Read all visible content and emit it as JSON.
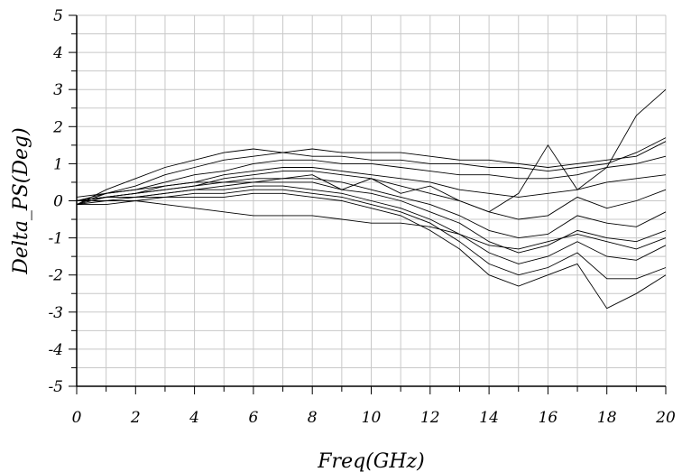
{
  "chart_data": {
    "type": "line",
    "title": "",
    "xlabel": "Freq(GHz)",
    "ylabel": "Delta_PS(Deg)",
    "xlim": [
      0,
      20
    ],
    "ylim": [
      -5,
      5
    ],
    "x_ticks": [
      0,
      2,
      4,
      6,
      8,
      10,
      12,
      14,
      16,
      18,
      20
    ],
    "y_ticks": [
      -5,
      -4,
      -3,
      -2,
      -1,
      0,
      1,
      2,
      3,
      4,
      5
    ],
    "x_tick_labels": [
      "0",
      "2",
      "4",
      "6",
      "8",
      "10",
      "12",
      "14",
      "16",
      "18",
      "20"
    ],
    "y_tick_labels": [
      "-5",
      "-4",
      "-3",
      "-2",
      "-1",
      "0",
      "1",
      "2",
      "3",
      "4",
      "5"
    ],
    "grid": true,
    "legend": "none",
    "x": [
      0,
      1,
      2,
      3,
      4,
      5,
      6,
      7,
      8,
      9,
      10,
      11,
      12,
      13,
      14,
      15,
      16,
      17,
      18,
      19,
      20
    ],
    "series": [
      {
        "values": [
          -0.1,
          0.2,
          0.4,
          0.7,
          0.9,
          1.1,
          1.2,
          1.3,
          1.4,
          1.3,
          1.3,
          1.3,
          1.2,
          1.1,
          1.1,
          1.0,
          0.9,
          1.0,
          1.1,
          1.2,
          1.6
        ]
      },
      {
        "values": [
          -0.1,
          0.3,
          0.6,
          0.9,
          1.1,
          1.3,
          1.4,
          1.3,
          1.2,
          1.2,
          1.1,
          1.1,
          1.0,
          1.0,
          0.9,
          0.9,
          0.8,
          0.9,
          1.0,
          1.3,
          1.7
        ]
      },
      {
        "values": [
          0.0,
          0.2,
          0.3,
          0.5,
          0.7,
          0.8,
          1.0,
          1.1,
          1.1,
          1.0,
          1.0,
          0.9,
          0.8,
          0.7,
          0.7,
          0.6,
          0.6,
          0.7,
          0.9,
          1.0,
          1.2
        ]
      },
      {
        "values": [
          0.0,
          0.1,
          0.2,
          0.4,
          0.5,
          0.7,
          0.8,
          0.9,
          0.9,
          0.8,
          0.7,
          0.6,
          0.5,
          0.3,
          0.2,
          0.1,
          0.2,
          0.3,
          0.5,
          0.6,
          0.7
        ]
      },
      {
        "values": [
          -0.1,
          0.1,
          0.2,
          0.3,
          0.4,
          0.6,
          0.7,
          0.8,
          0.8,
          0.7,
          0.6,
          0.4,
          0.2,
          0.0,
          -0.3,
          -0.5,
          -0.4,
          0.1,
          -0.2,
          0.0,
          0.3
        ]
      },
      {
        "values": [
          0.0,
          0.1,
          0.2,
          0.3,
          0.4,
          0.5,
          0.6,
          0.6,
          0.6,
          0.5,
          0.3,
          0.1,
          -0.1,
          -0.4,
          -0.8,
          -1.0,
          -0.9,
          -0.4,
          -0.6,
          -0.7,
          -0.3
        ]
      },
      {
        "values": [
          0.0,
          0.1,
          0.1,
          0.2,
          0.3,
          0.4,
          0.5,
          0.5,
          0.5,
          0.3,
          0.2,
          0.0,
          -0.3,
          -0.6,
          -1.1,
          -1.4,
          -1.2,
          -0.8,
          -1.0,
          -1.1,
          -0.8
        ]
      },
      {
        "values": [
          -0.1,
          0.0,
          0.1,
          0.2,
          0.3,
          0.3,
          0.4,
          0.4,
          0.3,
          0.2,
          0.0,
          -0.2,
          -0.5,
          -0.9,
          -1.4,
          -1.7,
          -1.5,
          -1.1,
          -1.5,
          -1.6,
          -1.2
        ]
      },
      {
        "values": [
          0.0,
          0.1,
          0.1,
          0.1,
          0.2,
          0.2,
          0.3,
          0.3,
          0.2,
          0.1,
          -0.1,
          -0.3,
          -0.6,
          -1.1,
          -1.7,
          -2.0,
          -1.8,
          -1.4,
          -2.1,
          -2.1,
          -1.8
        ]
      },
      {
        "values": [
          0.0,
          0.0,
          0.0,
          0.1,
          0.1,
          0.1,
          0.2,
          0.2,
          0.1,
          0.0,
          -0.2,
          -0.4,
          -0.8,
          -1.3,
          -2.0,
          -2.3,
          -2.0,
          -1.7,
          -2.9,
          -2.5,
          -2.0
        ]
      },
      {
        "values": [
          -0.1,
          -0.1,
          0.0,
          -0.1,
          -0.2,
          -0.3,
          -0.4,
          -0.4,
          -0.4,
          -0.5,
          -0.6,
          -0.6,
          -0.7,
          -0.9,
          -1.2,
          -1.3,
          -1.1,
          -0.9,
          -1.1,
          -1.3,
          -1.0
        ]
      },
      {
        "values": [
          0.1,
          0.2,
          0.3,
          0.4,
          0.5,
          0.5,
          0.5,
          0.6,
          0.7,
          0.3,
          0.6,
          0.2,
          0.4,
          0.0,
          -0.3,
          0.2,
          1.5,
          0.3,
          0.9,
          2.3,
          3.0
        ]
      }
    ]
  }
}
